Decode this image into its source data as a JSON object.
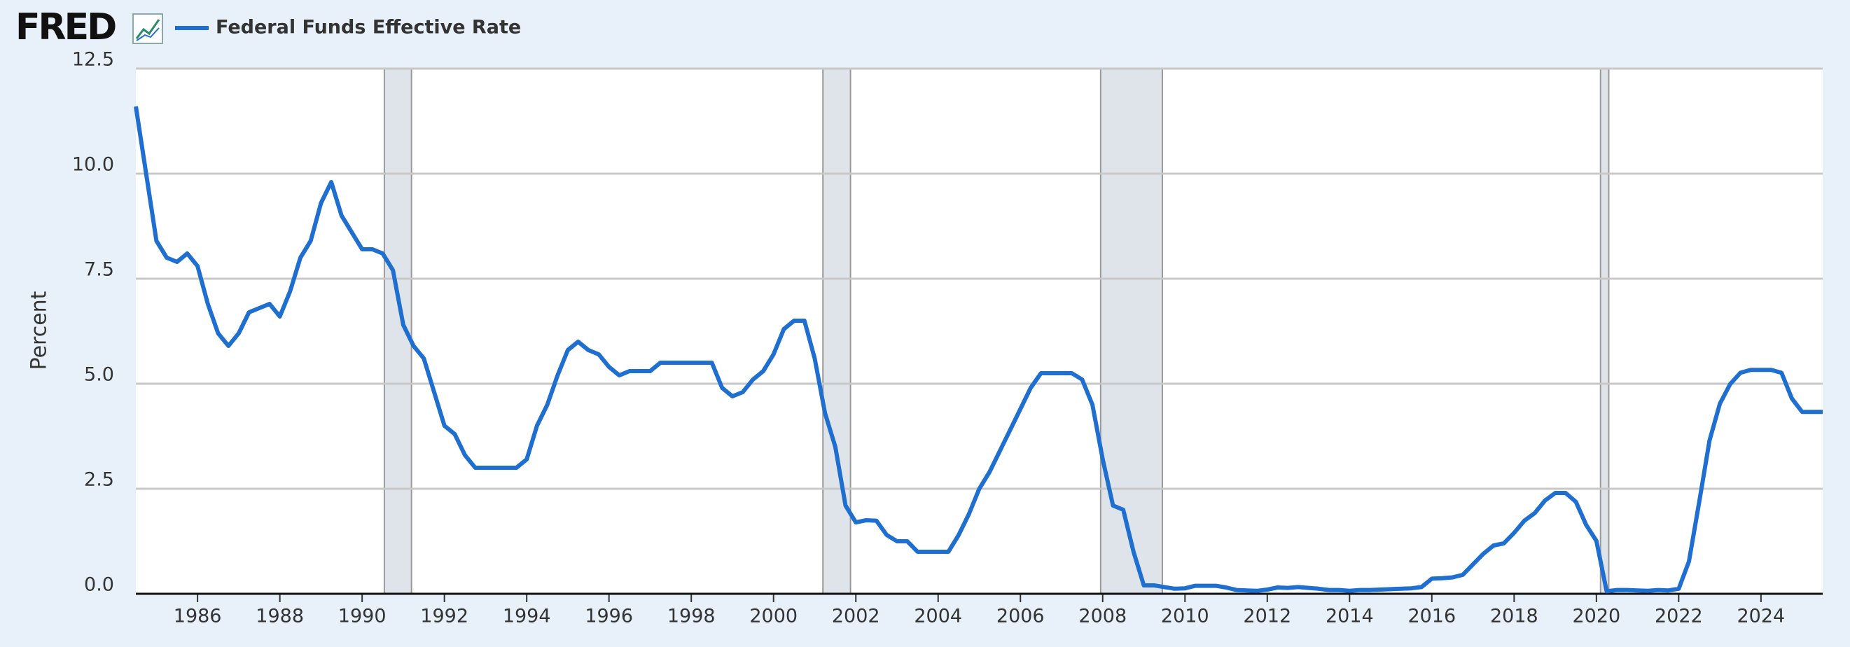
{
  "chart_data": {
    "type": "line",
    "logo": "FRED",
    "y_label": "Percent",
    "xlim": [
      1984.5,
      2025.5
    ],
    "xticks": [
      1986,
      1988,
      1990,
      1992,
      1994,
      1996,
      1998,
      2000,
      2002,
      2004,
      2006,
      2008,
      2010,
      2012,
      2014,
      2016,
      2018,
      2020,
      2022,
      2024
    ],
    "ylim": [
      0,
      12.5
    ],
    "yticks": [
      {
        "value": 0,
        "label": "0.0"
      },
      2.5,
      {
        "value": 5,
        "label": "5.0"
      },
      7.5,
      {
        "value": 10,
        "label": "10.0"
      },
      12.5
    ],
    "grid": true,
    "recessions": [
      [
        1990.54,
        1991.2
      ],
      [
        2001.2,
        2001.87
      ],
      [
        2007.95,
        2009.45
      ],
      [
        2020.1,
        2020.3
      ]
    ],
    "recession_color": "#dfe4ea",
    "x": [
      1984.5,
      1984.75,
      1985,
      1985.25,
      1985.5,
      1985.75,
      1986,
      1986.25,
      1986.5,
      1986.75,
      1987,
      1987.25,
      1987.5,
      1987.75,
      1988,
      1988.25,
      1988.5,
      1988.75,
      1989,
      1989.25,
      1989.5,
      1989.75,
      1990,
      1990.25,
      1990.5,
      1990.75,
      1991,
      1991.25,
      1991.5,
      1991.75,
      1992,
      1992.25,
      1992.5,
      1992.75,
      1993,
      1993.25,
      1993.5,
      1993.75,
      1994,
      1994.25,
      1994.5,
      1994.75,
      1995,
      1995.25,
      1995.5,
      1995.75,
      1996,
      1996.25,
      1996.5,
      1996.75,
      1997,
      1997.25,
      1997.5,
      1997.75,
      1998,
      1998.25,
      1998.5,
      1998.75,
      1999,
      1999.25,
      1999.5,
      1999.75,
      2000,
      2000.25,
      2000.5,
      2000.75,
      2001,
      2001.25,
      2001.5,
      2001.75,
      2002,
      2002.25,
      2002.5,
      2002.75,
      2003,
      2003.25,
      2003.5,
      2003.75,
      2004,
      2004.25,
      2004.5,
      2004.75,
      2005,
      2005.25,
      2005.5,
      2005.75,
      2006,
      2006.25,
      2006.5,
      2006.75,
      2007,
      2007.25,
      2007.5,
      2007.75,
      2008,
      2008.25,
      2008.5,
      2008.75,
      2009,
      2009.25,
      2009.5,
      2009.75,
      2010,
      2010.25,
      2010.5,
      2010.75,
      2011,
      2011.25,
      2011.5,
      2011.75,
      2012,
      2012.25,
      2012.5,
      2012.75,
      2013,
      2013.25,
      2013.5,
      2013.75,
      2014,
      2014.25,
      2014.5,
      2014.75,
      2015,
      2015.25,
      2015.5,
      2015.75,
      2016,
      2016.25,
      2016.5,
      2016.75,
      2017,
      2017.25,
      2017.5,
      2017.75,
      2018,
      2018.25,
      2018.5,
      2018.75,
      2019,
      2019.25,
      2019.5,
      2019.75,
      2020,
      2020.25,
      2020.5,
      2020.75,
      2021,
      2021.25,
      2021.5,
      2021.75,
      2022,
      2022.25,
      2022.5,
      2022.75,
      2023,
      2023.25,
      2023.5,
      2023.75,
      2024,
      2024.25,
      2024.5,
      2024.75,
      2025,
      2025.25,
      2025.5
    ],
    "series": [
      {
        "name": "Federal Funds Effective Rate",
        "color": "#1f6fd1",
        "values": [
          11.6,
          10.0,
          8.4,
          8.0,
          7.9,
          8.1,
          7.8,
          6.9,
          6.2,
          5.9,
          6.2,
          6.7,
          6.8,
          6.9,
          6.6,
          7.2,
          8.0,
          8.4,
          9.3,
          9.8,
          9.0,
          8.6,
          8.2,
          8.2,
          8.1,
          7.7,
          6.4,
          5.9,
          5.6,
          4.8,
          4.0,
          3.8,
          3.3,
          3.0,
          3.0,
          3.0,
          3.0,
          3.0,
          3.2,
          4.0,
          4.5,
          5.2,
          5.8,
          6.0,
          5.8,
          5.7,
          5.4,
          5.2,
          5.3,
          5.3,
          5.3,
          5.5,
          5.5,
          5.5,
          5.5,
          5.5,
          5.5,
          4.9,
          4.7,
          4.8,
          5.1,
          5.3,
          5.7,
          6.3,
          6.5,
          6.5,
          5.6,
          4.3,
          3.5,
          2.1,
          1.7,
          1.75,
          1.74,
          1.4,
          1.25,
          1.25,
          1.0,
          1.0,
          1.0,
          1.0,
          1.4,
          1.9,
          2.5,
          2.9,
          3.4,
          3.9,
          4.4,
          4.9,
          5.25,
          5.25,
          5.25,
          5.25,
          5.1,
          4.5,
          3.2,
          2.1,
          2.0,
          1.0,
          0.2,
          0.2,
          0.16,
          0.12,
          0.13,
          0.19,
          0.19,
          0.19,
          0.15,
          0.09,
          0.08,
          0.07,
          0.1,
          0.15,
          0.14,
          0.16,
          0.14,
          0.12,
          0.09,
          0.09,
          0.07,
          0.09,
          0.09,
          0.1,
          0.11,
          0.12,
          0.13,
          0.16,
          0.36,
          0.37,
          0.39,
          0.45,
          0.7,
          0.95,
          1.15,
          1.2,
          1.45,
          1.74,
          1.92,
          2.22,
          2.4,
          2.4,
          2.19,
          1.64,
          1.26,
          0.06,
          0.09,
          0.09,
          0.08,
          0.07,
          0.09,
          0.08,
          0.12,
          0.77,
          2.19,
          3.65,
          4.52,
          4.99,
          5.26,
          5.33,
          5.33,
          5.33,
          5.26,
          4.65,
          4.33,
          4.33,
          4.33
        ]
      }
    ]
  }
}
